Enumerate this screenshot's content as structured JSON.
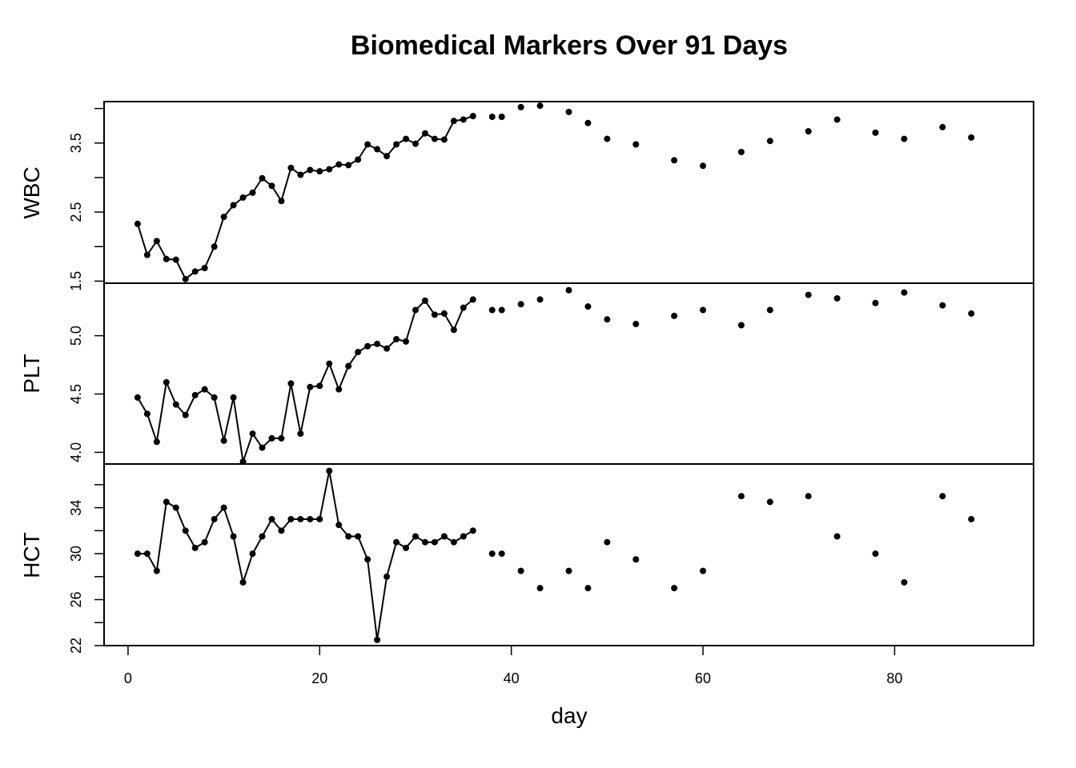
{
  "chart_data": {
    "type": "line",
    "title": "Biomedical Markers Over 91 Days",
    "xlabel": "day",
    "xlim": [
      -2.5,
      94.5
    ],
    "x_ticks": [
      0,
      20,
      40,
      60,
      80
    ],
    "panels": [
      {
        "name": "WBC",
        "ylabel": "WBC",
        "ylim": [
          1.47,
          4.1
        ],
        "y_ticks": [
          1.5,
          2.0,
          2.5,
          3.0,
          3.5,
          4.0
        ],
        "y_tick_labels": [
          "1.5",
          "",
          "2.5",
          "",
          "3.5",
          ""
        ],
        "x": [
          1,
          2,
          3,
          4,
          5,
          6,
          7,
          8,
          9,
          10,
          11,
          12,
          13,
          14,
          15,
          16,
          17,
          18,
          19,
          20,
          21,
          22,
          23,
          24,
          25,
          26,
          27,
          28,
          29,
          30,
          31,
          32,
          33,
          34,
          35,
          36,
          38,
          39,
          41,
          43,
          46,
          48,
          50,
          53,
          57,
          60,
          64,
          67,
          71,
          74,
          78,
          81,
          85,
          88
        ],
        "values": [
          2.33,
          1.88,
          2.08,
          1.82,
          1.81,
          1.53,
          1.64,
          1.69,
          2.0,
          2.43,
          2.6,
          2.71,
          2.78,
          2.99,
          2.88,
          2.66,
          3.14,
          3.04,
          3.11,
          3.09,
          3.12,
          3.19,
          3.18,
          3.26,
          3.48,
          3.41,
          3.31,
          3.48,
          3.56,
          3.49,
          3.64,
          3.56,
          3.55,
          3.82,
          3.84,
          3.89,
          3.88,
          3.88,
          4.02,
          4.04,
          3.95,
          3.79,
          3.56,
          3.48,
          3.25,
          3.17,
          3.37,
          3.53,
          3.67,
          3.84,
          3.65,
          3.56,
          3.73,
          3.58
        ],
        "connected_through_x": 36
      },
      {
        "name": "PLT",
        "ylabel": "PLT",
        "ylim": [
          3.9,
          5.45
        ],
        "y_ticks": [
          4.0,
          4.5,
          5.0
        ],
        "y_tick_labels": [
          "4.0",
          "4.5",
          "5.0"
        ],
        "x": [
          1,
          2,
          3,
          4,
          5,
          6,
          7,
          8,
          9,
          10,
          11,
          12,
          13,
          14,
          15,
          16,
          17,
          18,
          19,
          20,
          21,
          22,
          23,
          24,
          25,
          26,
          27,
          28,
          29,
          30,
          31,
          32,
          33,
          34,
          35,
          36,
          38,
          39,
          41,
          43,
          46,
          48,
          50,
          53,
          57,
          60,
          64,
          67,
          71,
          74,
          78,
          81,
          85,
          88
        ],
        "values": [
          4.47,
          4.33,
          4.09,
          4.6,
          4.41,
          4.32,
          4.49,
          4.54,
          4.47,
          4.1,
          4.47,
          3.92,
          4.16,
          4.04,
          4.12,
          4.12,
          4.59,
          4.16,
          4.56,
          4.57,
          4.76,
          4.54,
          4.74,
          4.86,
          4.91,
          4.93,
          4.89,
          4.97,
          4.95,
          5.22,
          5.3,
          5.18,
          5.19,
          5.05,
          5.24,
          5.31,
          5.22,
          5.22,
          5.27,
          5.31,
          5.39,
          5.25,
          5.14,
          5.1,
          5.17,
          5.22,
          5.09,
          5.22,
          5.35,
          5.32,
          5.28,
          5.37,
          5.26,
          5.19
        ],
        "connected_through_x": 36
      },
      {
        "name": "HCT",
        "ylabel": "HCT",
        "ylim": [
          22,
          37.8
        ],
        "y_ticks": [
          22,
          24,
          26,
          28,
          30,
          32,
          34,
          36
        ],
        "y_tick_labels": [
          "22",
          "",
          "26",
          "",
          "30",
          "",
          "34",
          ""
        ],
        "x": [
          1,
          2,
          3,
          4,
          5,
          6,
          7,
          8,
          9,
          10,
          11,
          12,
          13,
          14,
          15,
          16,
          17,
          18,
          19,
          20,
          21,
          22,
          23,
          24,
          25,
          26,
          27,
          28,
          29,
          30,
          31,
          32,
          33,
          34,
          35,
          36,
          38,
          39,
          41,
          43,
          46,
          48,
          50,
          53,
          57,
          60,
          64,
          67,
          71,
          74,
          78,
          81,
          85,
          88
        ],
        "values": [
          30,
          30,
          28.5,
          34.5,
          34,
          32,
          30.5,
          31,
          33,
          34,
          31.5,
          27.5,
          30,
          31.5,
          33,
          32,
          33,
          33,
          33,
          33,
          37.2,
          32.5,
          31.5,
          31.5,
          29.5,
          22.5,
          28,
          31,
          30.5,
          31.5,
          31,
          31,
          31.5,
          31,
          31.5,
          32,
          30,
          30,
          28.5,
          27,
          28.5,
          27,
          31,
          29.5,
          27,
          28.5,
          35,
          34.5,
          35,
          31.5,
          30,
          27.5,
          35,
          33
        ],
        "connected_through_x": 36
      }
    ]
  }
}
